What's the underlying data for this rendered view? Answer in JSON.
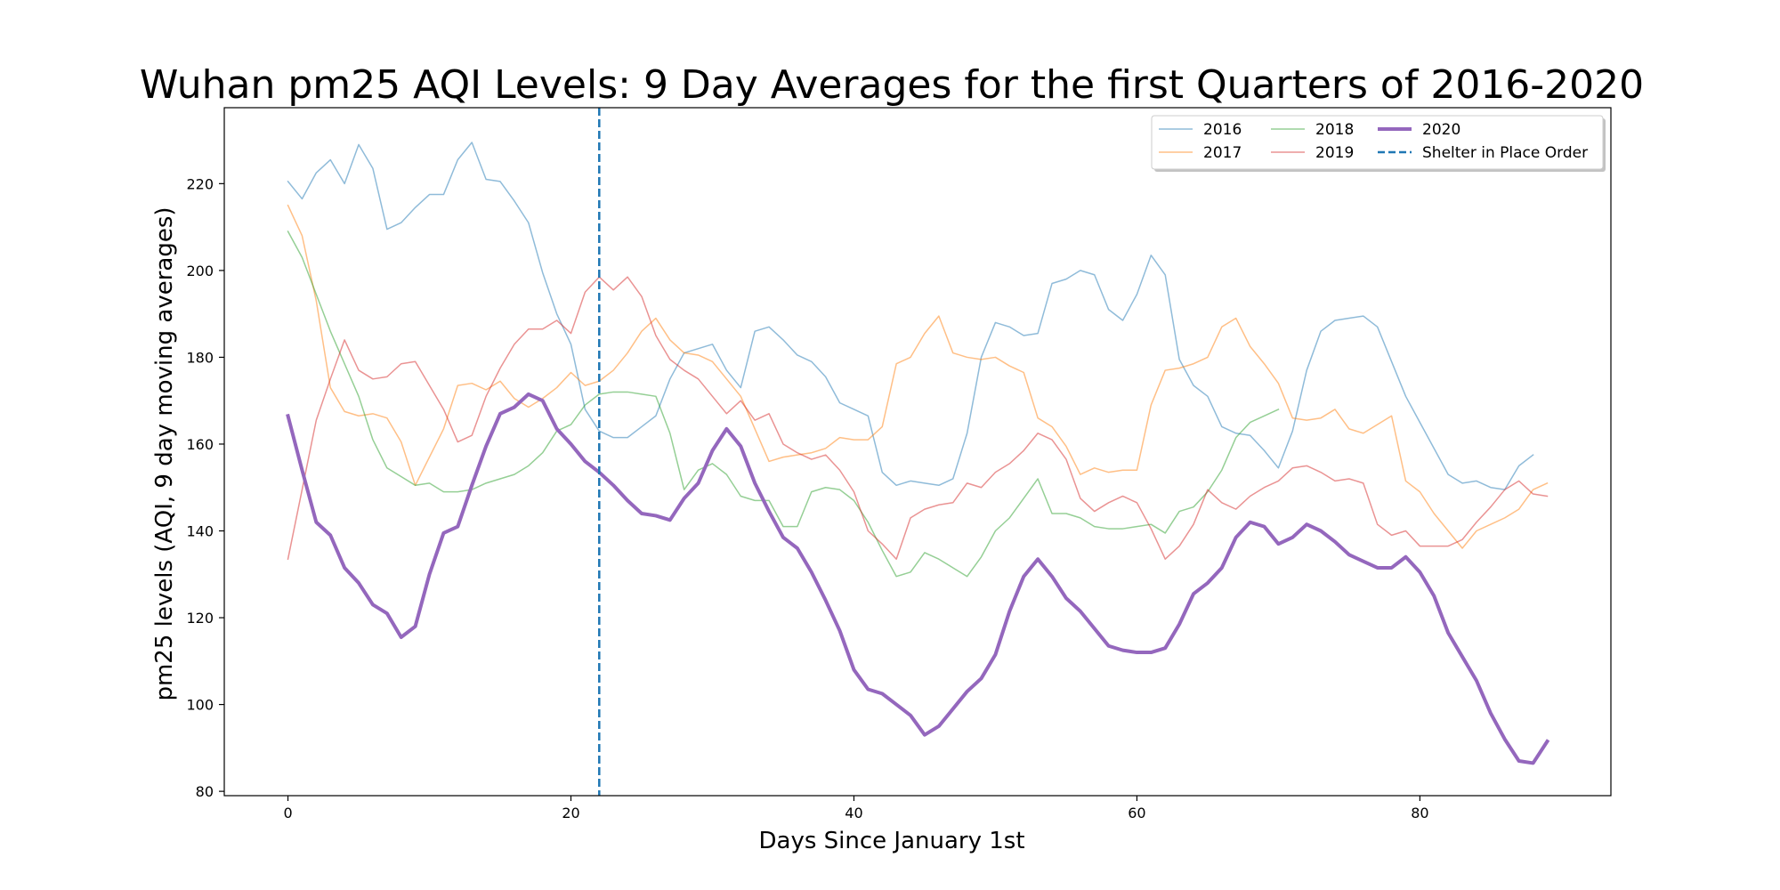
{
  "chart_data": {
    "type": "line",
    "title": "Wuhan pm25 AQI Levels: 9 Day Averages for the first Quarters of 2016-2020",
    "xlabel": "Days Since January 1st",
    "ylabel": "pm25 levels (AQI, 9 day moving averages)",
    "xlim": [
      -4.5,
      93.5
    ],
    "ylim": [
      79,
      237.5
    ],
    "xticks": [
      0,
      20,
      40,
      60,
      80
    ],
    "yticks": [
      80,
      100,
      120,
      140,
      160,
      180,
      200,
      220
    ],
    "grid": false,
    "legend_position": "top-right",
    "series": [
      {
        "name": "2016",
        "color": "#1f77b4",
        "opacity": 0.5,
        "width": 1.5,
        "start": 0,
        "values": [
          220.5,
          216.5,
          222.5,
          225.5,
          220,
          229,
          223.5,
          209.5,
          211,
          214.5,
          217.5,
          217.5,
          225.5,
          229.5,
          221,
          220.5,
          216,
          211,
          199.5,
          190,
          183,
          168,
          163,
          161.5,
          161.5,
          164,
          166.5,
          175,
          181,
          182,
          183,
          177,
          173,
          186,
          187,
          184,
          180.5,
          179,
          175.5,
          169.5,
          168,
          166.5,
          153.5,
          150.5,
          151.5,
          151,
          150.5,
          152,
          162.5,
          180,
          188,
          187,
          185,
          185.5,
          197,
          198,
          200,
          199,
          191,
          188.5,
          194.5,
          203.5,
          199,
          179.5,
          173.5,
          171,
          164,
          162.5,
          162,
          158.5,
          154.5,
          163,
          177,
          186,
          188.5,
          189,
          189.5,
          187,
          179,
          171,
          165,
          159,
          153,
          151,
          151.5,
          150,
          149.5,
          155,
          157.5
        ]
      },
      {
        "name": "2017",
        "color": "#ff7f0e",
        "opacity": 0.5,
        "width": 1.5,
        "start": 0,
        "values": [
          215,
          208,
          193,
          173,
          167.5,
          166.5,
          167,
          166,
          160.5,
          150.5,
          157,
          163.5,
          173.5,
          174,
          172.5,
          174.5,
          170.5,
          168.5,
          170.5,
          173,
          176.5,
          173.5,
          174.5,
          177,
          181,
          186,
          189,
          184,
          181,
          180.5,
          179,
          175,
          171,
          163.5,
          156,
          157,
          157.5,
          158,
          159,
          161.5,
          161,
          161,
          164,
          178.5,
          180,
          185.5,
          189.5,
          181,
          180,
          179.5,
          180,
          178,
          176.5,
          166,
          164,
          159.5,
          153,
          154.5,
          153.5,
          154,
          154,
          169,
          177,
          177.5,
          178.5,
          180,
          187,
          189,
          182.5,
          178.5,
          174,
          166,
          165.5,
          166,
          168,
          163.5,
          162.5,
          164.5,
          166.5,
          151.5,
          149,
          144,
          140,
          136,
          140,
          141.5,
          143,
          145,
          149.5,
          151
        ]
      },
      {
        "name": "2018",
        "color": "#2ca02c",
        "opacity": 0.5,
        "width": 1.5,
        "start": 0,
        "values": [
          209,
          203,
          194.5,
          186,
          178.5,
          171,
          161,
          154.5,
          152.5,
          150.5,
          151,
          149,
          149,
          149.5,
          151,
          152,
          153,
          155,
          158,
          163,
          164.5,
          169,
          171.5,
          172,
          172,
          171.5,
          171,
          162.5,
          149.5,
          154,
          155.5,
          153,
          148,
          147,
          147,
          141,
          141,
          149,
          150,
          149.5,
          147,
          142,
          135.5,
          129.5,
          130.5,
          135,
          133.5,
          131.5,
          129.5,
          134,
          140,
          143,
          147.5,
          152,
          144,
          144,
          143,
          141,
          140.5,
          140.5,
          141,
          141.5,
          139.5,
          144.5,
          145.5,
          149,
          154,
          161.5,
          165,
          166.5,
          168
        ]
      },
      {
        "name": "2019",
        "color": "#d62728",
        "opacity": 0.5,
        "width": 1.5,
        "start": 0,
        "values": [
          133.5,
          149.5,
          165.5,
          175,
          184,
          177,
          175,
          175.5,
          178.5,
          179,
          173.5,
          168,
          160.5,
          162,
          171,
          177.5,
          183,
          186.5,
          186.5,
          188.5,
          185.5,
          195,
          198.5,
          195.5,
          198.5,
          194,
          185,
          179.5,
          177,
          175,
          171,
          167,
          170,
          165.5,
          167,
          160,
          158,
          156.5,
          157.5,
          154,
          149,
          140,
          137,
          133.5,
          143,
          145,
          146,
          146.5,
          151,
          150,
          153.5,
          155.5,
          158.5,
          162.5,
          161,
          156.5,
          147.5,
          144.5,
          146.5,
          148,
          146.5,
          140.5,
          133.5,
          136.5,
          141.5,
          149.5,
          146.5,
          145,
          148,
          150,
          151.5,
          154.5,
          155,
          153.5,
          151.5,
          152,
          151,
          141.5,
          139,
          140,
          136.5,
          136.5,
          136.5,
          138,
          142,
          145.5,
          149.5,
          151.5,
          148.5,
          148
        ]
      },
      {
        "name": "2020",
        "color": "#9467bd",
        "opacity": 1,
        "width": 4,
        "start": 0,
        "values": [
          166.5,
          154,
          142,
          139,
          131.5,
          128,
          123,
          121,
          115.5,
          118,
          130,
          139.5,
          141,
          150.5,
          159.5,
          167,
          168.5,
          171.5,
          170,
          163.5,
          160,
          156,
          153.5,
          150.5,
          147,
          144,
          143.5,
          142.5,
          147.5,
          151,
          158.5,
          163.5,
          159.5,
          151,
          144.5,
          138.5,
          136,
          130.5,
          124,
          117,
          108,
          103.5,
          102.5,
          100,
          97.5,
          93,
          95,
          99,
          103,
          106,
          111.5,
          121.5,
          129.5,
          133.5,
          129.5,
          124.5,
          121.5,
          117.5,
          113.5,
          112.5,
          112,
          112,
          113,
          118.5,
          125.5,
          128,
          131.5,
          138.5,
          142,
          141,
          137,
          138.5,
          141.5,
          140,
          137.5,
          134.5,
          133,
          131.5,
          131.5,
          134,
          130.5,
          125,
          116.5,
          111,
          105.5,
          98,
          92,
          87,
          86.5,
          91.5
        ]
      }
    ],
    "reference_lines": [
      {
        "name": "Shelter in Place Order",
        "x": 22,
        "color": "#1f77b4",
        "style": "dashed"
      }
    ],
    "legend": {
      "columns": [
        [
          "2016",
          "2017"
        ],
        [
          "2018",
          "2019"
        ],
        [
          "2020",
          "Shelter in Place Order"
        ]
      ]
    }
  }
}
